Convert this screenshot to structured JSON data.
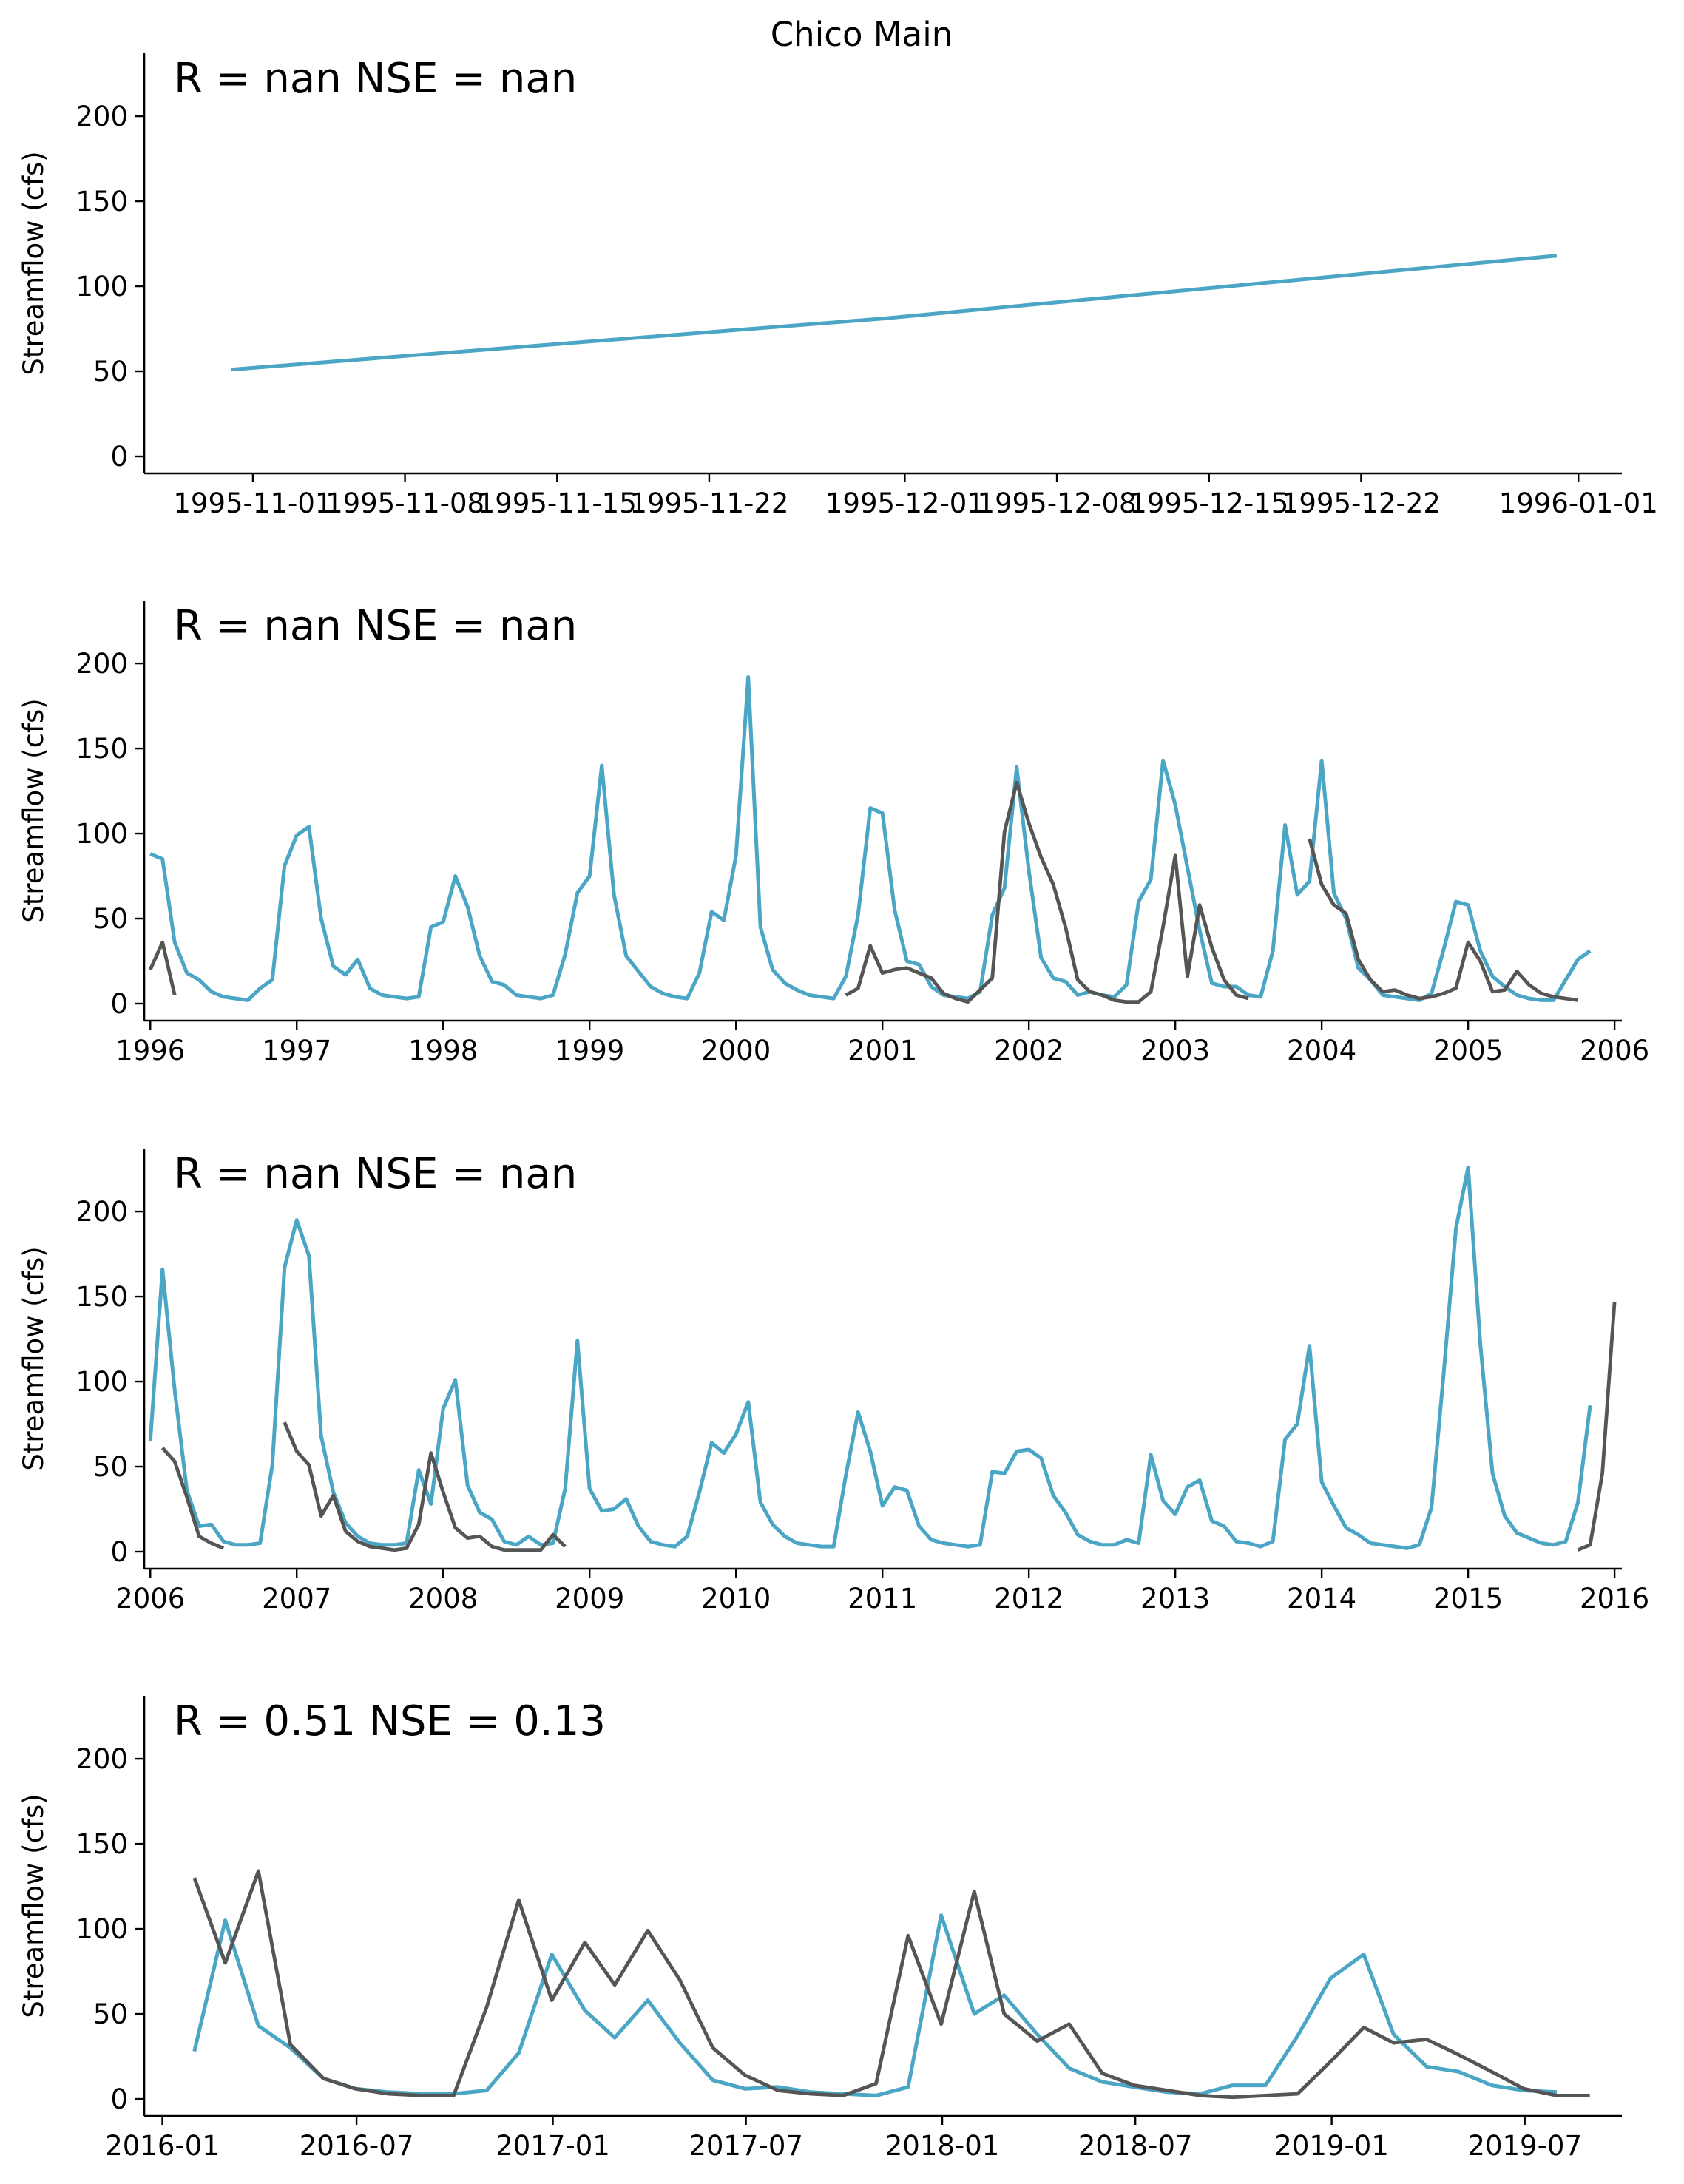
{
  "figure": {
    "title": "Chico Main",
    "colors": {
      "simulated": "#4aa6c4",
      "observed": "#555555"
    }
  },
  "chart_data": [
    {
      "type": "line",
      "stats": "R = nan  NSE = nan",
      "ylabel": "Streamflow (cfs)",
      "ylim": [
        -10,
        237
      ],
      "yticks": [
        "0",
        "50",
        "100",
        "150",
        "200"
      ],
      "xticks": [
        "1995-11-01",
        "1995-11-08",
        "1995-11-15",
        "1995-11-22",
        "1995-12-01",
        "1995-12-08",
        "1995-12-15",
        "1995-12-22",
        "1996-01-01"
      ],
      "grid": false,
      "series": [
        {
          "role": "simulated",
          "x": [
            "1995-10-31",
            "1995-11-30",
            "1995-12-31"
          ],
          "values": [
            51,
            81,
            118
          ]
        }
      ]
    },
    {
      "type": "line",
      "stats": "R = nan  NSE = nan",
      "ylabel": "Streamflow (cfs)",
      "ylim": [
        -10,
        237
      ],
      "yticks": [
        "0",
        "50",
        "100",
        "150",
        "200"
      ],
      "xticks": [
        "1996",
        "1997",
        "1998",
        "1999",
        "2000",
        "2001",
        "2002",
        "2003",
        "2004",
        "2005",
        "2006"
      ],
      "grid": false,
      "series": [
        {
          "role": "simulated",
          "x_start": "1996-01",
          "values": [
            88,
            85,
            36,
            18,
            14,
            7,
            4,
            3,
            2,
            9,
            14,
            81,
            99,
            104,
            50,
            22,
            17,
            26,
            9,
            5,
            4,
            3,
            4,
            45,
            48,
            75,
            57,
            28,
            13,
            11,
            5,
            4,
            3,
            5,
            29,
            65,
            75,
            140,
            64,
            28,
            19,
            10,
            6,
            4,
            3,
            18,
            54,
            49,
            87,
            192,
            45,
            20,
            12,
            8,
            5,
            4,
            3,
            16,
            52,
            115,
            112,
            55,
            25,
            23,
            10,
            5,
            4,
            3,
            7,
            52,
            68,
            139,
            78,
            27,
            15,
            13,
            5,
            7,
            5,
            4,
            11,
            60,
            73,
            143,
            117,
            80,
            43,
            12,
            10,
            10,
            5,
            4,
            31,
            105,
            64,
            72,
            143,
            65,
            50,
            21,
            14,
            5,
            4,
            3,
            2,
            6,
            32,
            60,
            58,
            31,
            16,
            10,
            5,
            3,
            2,
            2,
            14,
            26,
            31
          ]
        },
        {
          "role": "observed",
          "x_start": "1996-01",
          "values": [
            20,
            36,
            5
          ]
        },
        {
          "role": "observed",
          "x_start": "2000-10",
          "values": [
            5,
            9,
            34,
            18,
            20,
            21,
            18,
            15,
            6,
            3,
            1,
            8,
            15,
            101,
            130,
            106,
            86,
            70,
            45,
            14,
            7,
            5,
            2,
            1,
            1,
            7,
            45,
            87,
            16,
            58,
            33,
            14,
            5,
            3
          ]
        },
        {
          "role": "observed",
          "x_start": "2003-12",
          "values": [
            97,
            70,
            58,
            53,
            26,
            14,
            7,
            8,
            5,
            3,
            4,
            6,
            9,
            36,
            25,
            7,
            8,
            19,
            11,
            6,
            4,
            3,
            2
          ]
        }
      ]
    },
    {
      "type": "line",
      "stats": "R = nan  NSE = nan",
      "ylabel": "Streamflow (cfs)",
      "ylim": [
        -10,
        237
      ],
      "yticks": [
        "0",
        "50",
        "100",
        "150",
        "200"
      ],
      "xticks": [
        "2006",
        "2007",
        "2008",
        "2009",
        "2010",
        "2011",
        "2012",
        "2013",
        "2014",
        "2015",
        "2016"
      ],
      "grid": false,
      "series": [
        {
          "role": "simulated",
          "x_start": "2006-01",
          "values": [
            65,
            166,
            95,
            36,
            15,
            16,
            6,
            4,
            4,
            5,
            51,
            167,
            195,
            174,
            68,
            35,
            17,
            9,
            5,
            4,
            4,
            5,
            48,
            28,
            84,
            101,
            39,
            23,
            19,
            6,
            4,
            9,
            4,
            5,
            37,
            124,
            37,
            24,
            25,
            31,
            15,
            6,
            4,
            3,
            9,
            35,
            64,
            58,
            69,
            88,
            29,
            16,
            9,
            5,
            4,
            3,
            3,
            45,
            82,
            59,
            27,
            38,
            36,
            15,
            7,
            5,
            4,
            3,
            4,
            47,
            46,
            59,
            60,
            55,
            33,
            23,
            10,
            6,
            4,
            4,
            7,
            5,
            57,
            30,
            22,
            38,
            42,
            18,
            15,
            6,
            5,
            3,
            6,
            66,
            75,
            121,
            41,
            27,
            14,
            10,
            5,
            4,
            3,
            2,
            4,
            26,
            105,
            190,
            226,
            122,
            46,
            21,
            11,
            8,
            5,
            4,
            6,
            29,
            86
          ]
        },
        {
          "role": "observed",
          "x_start": "2006-02",
          "values": [
            61,
            53,
            32,
            9,
            5,
            2
          ]
        },
        {
          "role": "observed",
          "x_start": "2006-12",
          "values": [
            76,
            59,
            51,
            21,
            33,
            12,
            6,
            3,
            2,
            1,
            2,
            16,
            58,
            35,
            14,
            8,
            9,
            3,
            1,
            1,
            1,
            1,
            10,
            3
          ]
        },
        {
          "role": "observed",
          "x_start": "2015-10",
          "values": [
            1,
            4,
            46,
            147
          ]
        }
      ]
    },
    {
      "type": "line",
      "stats": "R = 0.51  NSE = 0.13",
      "ylabel": "Streamflow (cfs)",
      "ylim": [
        -10,
        237
      ],
      "yticks": [
        "0",
        "50",
        "100",
        "150",
        "200"
      ],
      "xticks": [
        "2016-01",
        "2016-07",
        "2017-01",
        "2017-07",
        "2018-01",
        "2018-07",
        "2019-01",
        "2019-07"
      ],
      "grid": false,
      "series": [
        {
          "role": "simulated",
          "x_start": "2016-01",
          "values": [
            28,
            105,
            43,
            30,
            12,
            6,
            4,
            3,
            3,
            5,
            27,
            85,
            52,
            36,
            58,
            33,
            11,
            6,
            7,
            4,
            3,
            2,
            7,
            108,
            50,
            61,
            38,
            18,
            10,
            7,
            4,
            3,
            8,
            8,
            37,
            71,
            85,
            38,
            19,
            16,
            8,
            5,
            4
          ]
        },
        {
          "role": "observed",
          "x_start": "2016-01",
          "values": [
            130,
            80,
            134,
            32,
            12,
            6,
            3,
            2,
            2,
            54,
            117,
            58,
            92,
            67,
            99,
            70,
            30,
            14,
            5,
            3,
            2,
            9,
            96,
            44,
            122,
            50,
            34,
            44,
            15,
            8,
            5,
            2,
            1,
            2,
            3,
            22,
            42,
            33,
            35,
            26,
            16,
            6,
            2,
            2
          ]
        }
      ]
    }
  ]
}
